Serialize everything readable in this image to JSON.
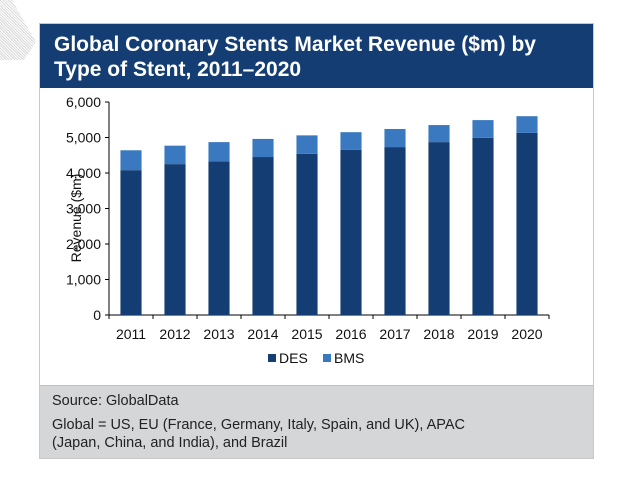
{
  "header": {
    "title_line1": "Global Coronary Stents Market Revenue ($m) by",
    "title_line2": "Type of Stent, 2011–2020"
  },
  "footer": {
    "source": "Source: GlobalData",
    "note_line1": "Global = US, EU (France, Germany, Italy, Spain, and UK), APAC",
    "note_line2": "(Japan, China, and India), and Brazil"
  },
  "chart_data": {
    "type": "bar",
    "stacked": true,
    "title": "Global Coronary Stents Market Revenue ($m) by Type of Stent, 2011–2020",
    "xlabel": "",
    "ylabel": "Revenue ($m)",
    "ylim": [
      0,
      6000
    ],
    "yticks": [
      0,
      1000,
      2000,
      3000,
      4000,
      5000,
      6000
    ],
    "ytick_labels": [
      "0",
      "1,000",
      "2,000",
      "3,000",
      "4,000",
      "5,000",
      "6,000"
    ],
    "grid": false,
    "legend_position": "bottom",
    "categories": [
      "2011",
      "2012",
      "2013",
      "2014",
      "2015",
      "2016",
      "2017",
      "2018",
      "2019",
      "2020"
    ],
    "series": [
      {
        "name": "DES",
        "color": "#133d73",
        "values": [
          4080,
          4250,
          4330,
          4450,
          4540,
          4650,
          4730,
          4870,
          4990,
          5130
        ]
      },
      {
        "name": "BMS",
        "color": "#3a78c0",
        "values": [
          560,
          520,
          540,
          510,
          520,
          500,
          510,
          480,
          500,
          470
        ]
      }
    ]
  }
}
